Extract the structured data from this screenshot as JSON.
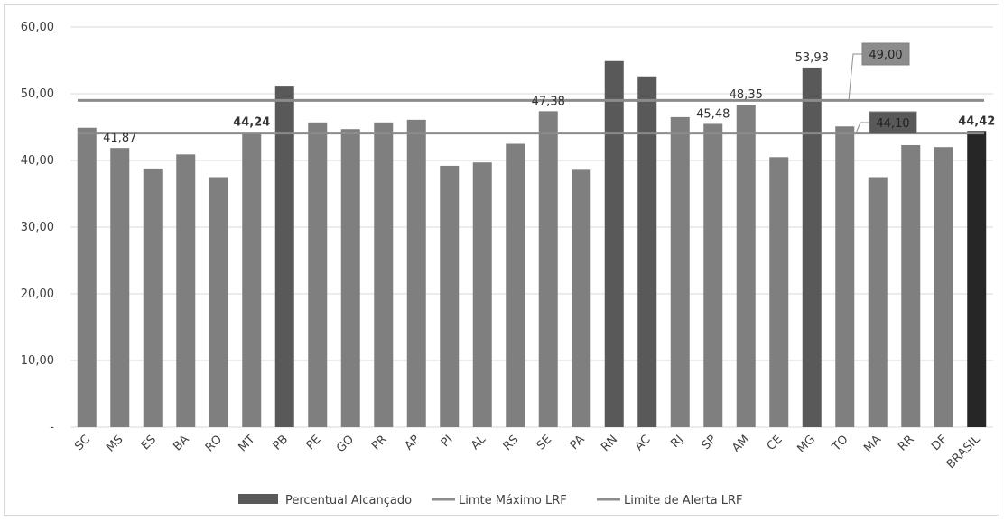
{
  "chart_data": {
    "type": "bar",
    "categories": [
      "SC",
      "MS",
      "ES",
      "BA",
      "RO",
      "MT",
      "PB",
      "PE",
      "GO",
      "PR",
      "AP",
      "PI",
      "AL",
      "RS",
      "SE",
      "PA",
      "RN",
      "AC",
      "RJ",
      "SP",
      "AM",
      "CE",
      "MG",
      "TO",
      "MA",
      "RR",
      "DF",
      "BRASIL"
    ],
    "series": [
      {
        "name": "Percentual Alcançado",
        "values": [
          44.9,
          41.87,
          38.8,
          40.9,
          37.5,
          44.24,
          51.2,
          45.7,
          44.7,
          45.7,
          46.1,
          39.2,
          39.7,
          42.5,
          47.38,
          38.6,
          54.9,
          52.6,
          46.5,
          45.48,
          48.35,
          40.5,
          53.93,
          45.1,
          37.5,
          42.3,
          42.0,
          44.42
        ],
        "highlight": {
          "PB": "dark",
          "RN": "dark",
          "AC": "dark",
          "MG": "dark",
          "BRASIL": "darkest"
        }
      }
    ],
    "lines": [
      {
        "name": "Limte Máximo LRF",
        "value": 49.0,
        "callout": "49,00"
      },
      {
        "name": "Limite de Alerta LRF",
        "value": 44.1,
        "callout": "44,10"
      }
    ],
    "data_labels": [
      {
        "category": "MS",
        "text": "41,87",
        "bold": false
      },
      {
        "category": "MT",
        "text": "44,24",
        "bold": true
      },
      {
        "category": "SE",
        "text": "47,38",
        "bold": false
      },
      {
        "category": "SP",
        "text": "45,48",
        "bold": false
      },
      {
        "category": "AM",
        "text": "48,35",
        "bold": false
      },
      {
        "category": "MG",
        "text": "53,93",
        "bold": false
      },
      {
        "category": "BRASIL",
        "text": "44,42",
        "bold": true
      }
    ],
    "y_ticks": [
      "-",
      "10,00",
      "20,00",
      "30,00",
      "40,00",
      "50,00",
      "60,00"
    ],
    "ylim": [
      0,
      60
    ],
    "grid": true,
    "legend_placement": "bottom",
    "legend": [
      "Percentual Alcançado",
      "Limte Máximo LRF",
      "Limite de Alerta LRF"
    ],
    "colors": {
      "bar": "#7f7f7f",
      "bar_dark": "#595959",
      "bar_darkest": "#262626",
      "max_line": "#8c8c8c",
      "alert_line": "#8c8c8c",
      "grid": "#d9d9d9",
      "callout_max_fill": "#8c8c8c",
      "callout_alert_fill": "#595959"
    }
  }
}
